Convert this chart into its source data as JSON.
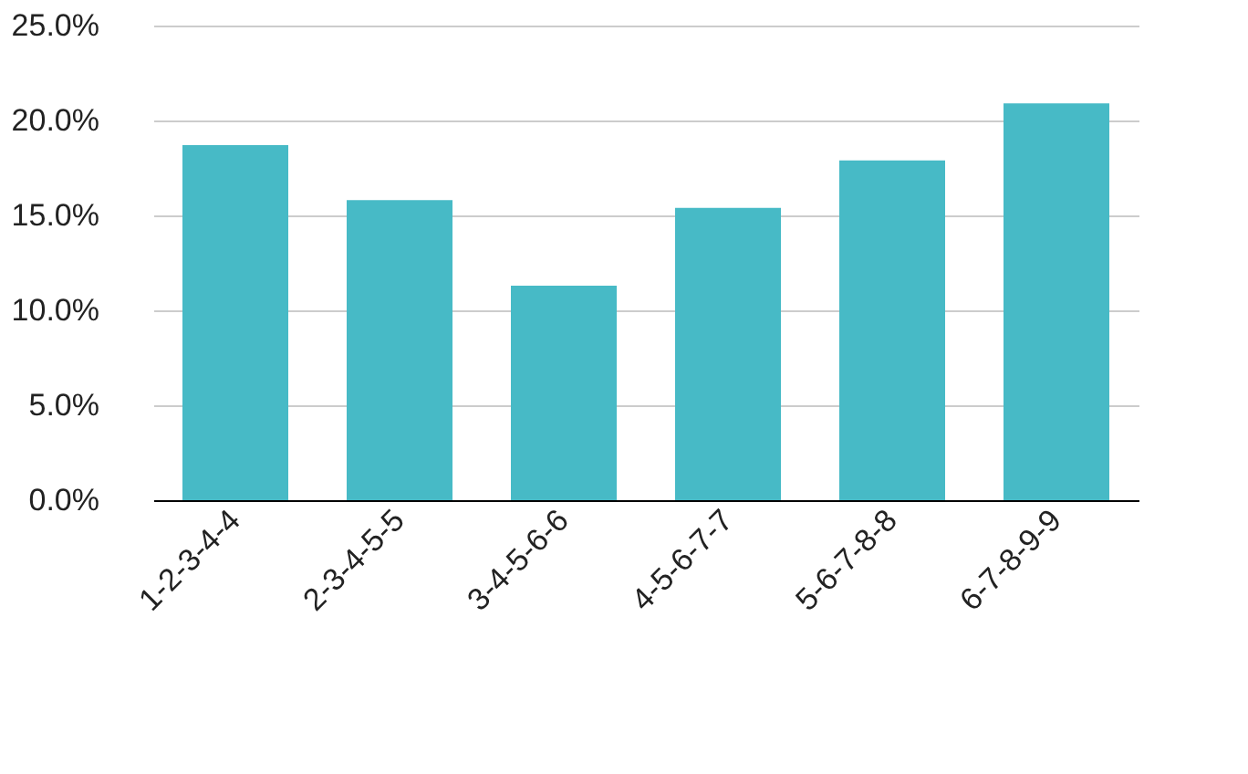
{
  "chart_data": {
    "type": "bar",
    "categories": [
      "1-2-3-4-4",
      "2-3-4-5-5",
      "3-4-5-6-6",
      "4-5-6-7-7",
      "5-6-7-8-8",
      "6-7-8-9-9"
    ],
    "values": [
      18.7,
      15.8,
      11.3,
      15.4,
      17.9,
      20.9
    ],
    "color": "#47bac6",
    "ylim": [
      0,
      25
    ],
    "yticks": [
      {
        "value": 0,
        "label": "0.0%"
      },
      {
        "value": 5,
        "label": "5.0%"
      },
      {
        "value": 10,
        "label": "10.0%"
      },
      {
        "value": 15,
        "label": "15.0%"
      },
      {
        "value": 20,
        "label": "20.0%"
      },
      {
        "value": 25,
        "label": "25.0%"
      }
    ],
    "grid": "y"
  }
}
